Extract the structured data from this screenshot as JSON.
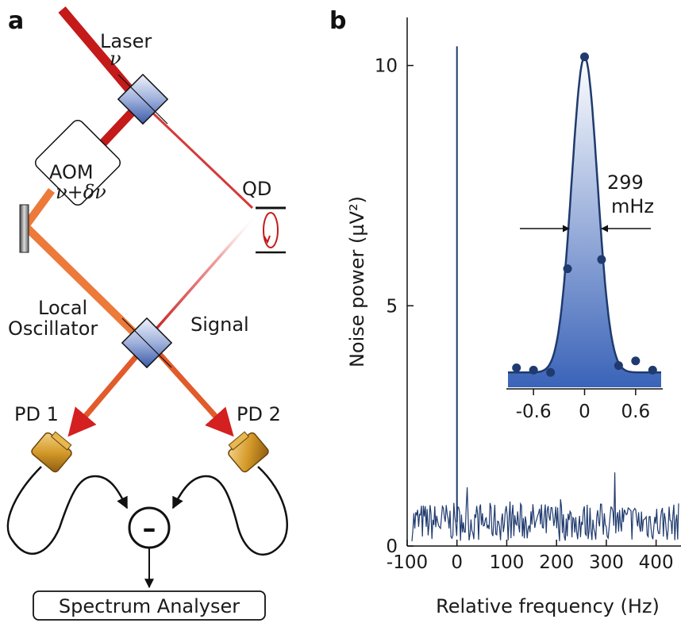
{
  "panel_a": {
    "label": "a",
    "laser_label": "Laser",
    "laser_freq": "ν",
    "aom_label": "AOM",
    "aom_freq": "ν+δν",
    "qd_label": "QD",
    "lo_label_1": "Local",
    "lo_label_2": "Oscillator",
    "signal_label": "Signal",
    "pd1_label": "PD 1",
    "pd2_label": "PD 2",
    "minus_symbol": "–",
    "analyser_label": "Spectrum Analyser"
  },
  "panel_b": {
    "label": "b",
    "inset_annotation_1": "299",
    "inset_annotation_2": "mHz"
  },
  "chart_data": [
    {
      "type": "line",
      "xlabel": "Relative frequency (Hz)",
      "ylabel": "Noise power (µV²)",
      "xlim": [
        -100,
        450
      ],
      "ylim": [
        0,
        11
      ],
      "x_ticks": [
        "-100",
        "0",
        "100",
        "200",
        "300",
        "400"
      ],
      "y_ticks": [
        "0",
        "5",
        "10"
      ],
      "series": [
        {
          "description_values": "noise floor ~0.5 µV² with fluctuations up to ~1.3 µV², single sharp peak at 0 Hz reaching ~10.4 µV²",
          "peak_x": 0,
          "peak_y": 10.4,
          "baseline_y": 0.5
        }
      ],
      "color": "#1f3a6e"
    },
    {
      "type": "scatter",
      "xlim": [
        -0.9,
        0.9
      ],
      "x_ticks": [
        "-0.6",
        "0",
        "0.6"
      ],
      "points": [
        {
          "x": -0.8,
          "y": 0.25
        },
        {
          "x": -0.6,
          "y": 0.2
        },
        {
          "x": -0.4,
          "y": 0.15
        },
        {
          "x": -0.2,
          "y": 2.4
        },
        {
          "x": 0.0,
          "y": 7.0
        },
        {
          "x": 0.2,
          "y": 2.6
        },
        {
          "x": 0.4,
          "y": 0.3
        },
        {
          "x": 0.6,
          "y": 0.4
        },
        {
          "x": 0.8,
          "y": 0.2
        }
      ],
      "fit_fwhm_mHz": 299,
      "color": "#1f3a6e"
    }
  ]
}
